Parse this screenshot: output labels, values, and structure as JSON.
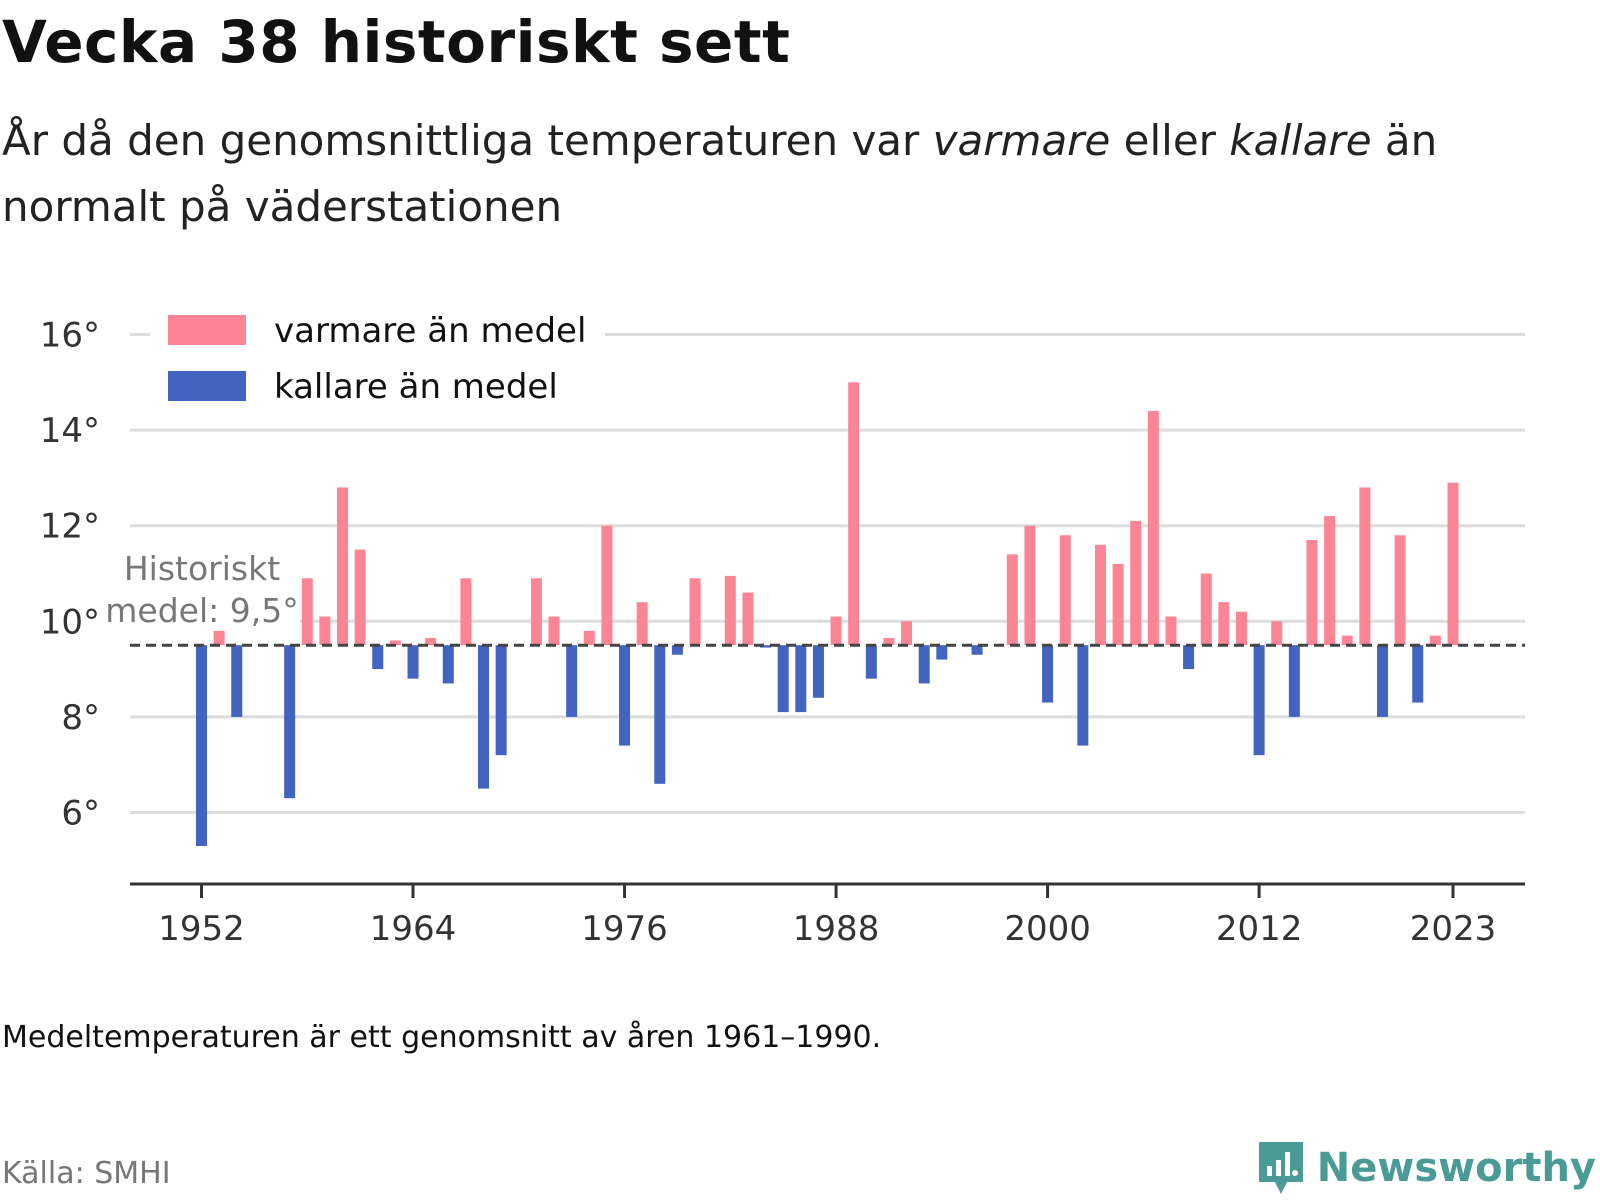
{
  "header": {
    "title": "Vecka 38 historiskt sett",
    "subtitle_part1": "År då den genomsnittliga temperaturen var ",
    "subtitle_em1": "varmare",
    "subtitle_part2": " eller ",
    "subtitle_em2": "kallare",
    "subtitle_part3": " än normalt på väderstationen"
  },
  "footer": {
    "note": "Medeltemperaturen är ett genomsnitt av åren 1961–1990.",
    "source": "Källa: SMHI",
    "brand": "Newsworthy"
  },
  "colors": {
    "warm": "#fc8595",
    "cold": "#4263bf",
    "grid": "#dddddd",
    "axis": "#333333",
    "mean_line": "#444444",
    "brand": "#4a9a96"
  },
  "chart_data": {
    "type": "bar",
    "baseline": 9.5,
    "baseline_label": [
      "Historiskt",
      "medel: 9,5°"
    ],
    "legend": [
      {
        "name": "varmare än medel",
        "color": "#fc8595"
      },
      {
        "name": "kallare än medel",
        "color": "#4263bf"
      }
    ],
    "legend_placement": "top-left",
    "ylim": [
      4.5,
      16.2
    ],
    "yticks": [
      6,
      8,
      10,
      12,
      14,
      16
    ],
    "ytick_labels": [
      "6°",
      "8°",
      "10°",
      "12°",
      "14°",
      "16°"
    ],
    "xlim": [
      1948,
      2027
    ],
    "xticks": [
      1952,
      1964,
      1976,
      1988,
      2000,
      2012,
      2023
    ],
    "xtick_labels": [
      "1952",
      "1964",
      "1976",
      "1988",
      "2000",
      "2012",
      "2023"
    ],
    "grid": true,
    "series": [
      {
        "x": 1952,
        "y": 5.3
      },
      {
        "x": 1953,
        "y": 9.8
      },
      {
        "x": 1954,
        "y": 8.0
      },
      {
        "x": 1955,
        "y": null
      },
      {
        "x": 1956,
        "y": null
      },
      {
        "x": 1957,
        "y": 6.3
      },
      {
        "x": 1958,
        "y": 10.9
      },
      {
        "x": 1959,
        "y": 10.1
      },
      {
        "x": 1960,
        "y": 12.8
      },
      {
        "x": 1961,
        "y": 11.5
      },
      {
        "x": 1962,
        "y": 9.0
      },
      {
        "x": 1963,
        "y": 9.6
      },
      {
        "x": 1964,
        "y": 8.8
      },
      {
        "x": 1965,
        "y": 9.65
      },
      {
        "x": 1966,
        "y": 8.7
      },
      {
        "x": 1967,
        "y": 10.9
      },
      {
        "x": 1968,
        "y": 6.5
      },
      {
        "x": 1969,
        "y": 7.2
      },
      {
        "x": 1970,
        "y": null
      },
      {
        "x": 1971,
        "y": 10.9
      },
      {
        "x": 1972,
        "y": 10.1
      },
      {
        "x": 1973,
        "y": 8.0
      },
      {
        "x": 1974,
        "y": 9.8
      },
      {
        "x": 1975,
        "y": 12.0
      },
      {
        "x": 1976,
        "y": 7.4
      },
      {
        "x": 1977,
        "y": 10.4
      },
      {
        "x": 1978,
        "y": 6.6
      },
      {
        "x": 1979,
        "y": 9.3
      },
      {
        "x": 1980,
        "y": 10.9
      },
      {
        "x": 1981,
        "y": null
      },
      {
        "x": 1982,
        "y": 10.95
      },
      {
        "x": 1983,
        "y": 10.6
      },
      {
        "x": 1984,
        "y": 9.45
      },
      {
        "x": 1985,
        "y": 8.1
      },
      {
        "x": 1986,
        "y": 8.1
      },
      {
        "x": 1987,
        "y": 8.4
      },
      {
        "x": 1988,
        "y": 10.1
      },
      {
        "x": 1989,
        "y": 15.0
      },
      {
        "x": 1990,
        "y": 8.8
      },
      {
        "x": 1991,
        "y": 9.65
      },
      {
        "x": 1992,
        "y": 10.0
      },
      {
        "x": 1993,
        "y": 8.7
      },
      {
        "x": 1994,
        "y": 9.2
      },
      {
        "x": 1995,
        "y": null
      },
      {
        "x": 1996,
        "y": 9.3
      },
      {
        "x": 1997,
        "y": null
      },
      {
        "x": 1998,
        "y": 11.4
      },
      {
        "x": 1999,
        "y": 12.0
      },
      {
        "x": 2000,
        "y": 8.3
      },
      {
        "x": 2001,
        "y": 11.8
      },
      {
        "x": 2002,
        "y": 7.4
      },
      {
        "x": 2003,
        "y": 11.6
      },
      {
        "x": 2004,
        "y": 11.2
      },
      {
        "x": 2005,
        "y": 12.1
      },
      {
        "x": 2006,
        "y": 14.4
      },
      {
        "x": 2007,
        "y": 10.1
      },
      {
        "x": 2008,
        "y": 9.0
      },
      {
        "x": 2009,
        "y": 11.0
      },
      {
        "x": 2010,
        "y": 10.4
      },
      {
        "x": 2011,
        "y": 10.2
      },
      {
        "x": 2012,
        "y": 7.2
      },
      {
        "x": 2013,
        "y": 10.0
      },
      {
        "x": 2014,
        "y": 8.0
      },
      {
        "x": 2015,
        "y": 11.7
      },
      {
        "x": 2016,
        "y": 12.2
      },
      {
        "x": 2017,
        "y": 9.7
      },
      {
        "x": 2018,
        "y": 12.8
      },
      {
        "x": 2019,
        "y": 8.0
      },
      {
        "x": 2020,
        "y": 11.8
      },
      {
        "x": 2021,
        "y": 8.3
      },
      {
        "x": 2022,
        "y": 9.7
      },
      {
        "x": 2023,
        "y": 12.9
      }
    ]
  }
}
